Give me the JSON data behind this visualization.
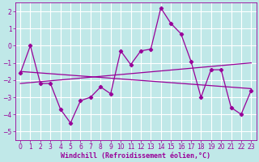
{
  "xlabel": "Windchill (Refroidissement éolien,°C)",
  "bg_color": "#c0e8e8",
  "grid_color": "#ffffff",
  "line_color": "#990099",
  "xlim": [
    -0.5,
    23.5
  ],
  "ylim": [
    -5.5,
    2.5
  ],
  "yticks": [
    -5,
    -4,
    -3,
    -2,
    -1,
    0,
    1,
    2
  ],
  "xticks": [
    0,
    1,
    2,
    3,
    4,
    5,
    6,
    7,
    8,
    9,
    10,
    11,
    12,
    13,
    14,
    15,
    16,
    17,
    18,
    19,
    20,
    21,
    22,
    23
  ],
  "series1_x": [
    0,
    1,
    2,
    3,
    4,
    5,
    6,
    7,
    8,
    9,
    10,
    11,
    12,
    13,
    14,
    15,
    16,
    17,
    18,
    19,
    20,
    21,
    22,
    23
  ],
  "series1_y": [
    -1.6,
    0.0,
    -2.2,
    -2.2,
    -3.7,
    -4.5,
    -3.2,
    -3.0,
    -2.4,
    -2.8,
    -0.3,
    -1.1,
    -0.3,
    -0.2,
    2.2,
    1.3,
    0.7,
    -0.9,
    -3.0,
    -1.4,
    -1.4,
    -3.6,
    -4.0,
    -2.6
  ],
  "series2_x": [
    0,
    23
  ],
  "series2_y": [
    -1.5,
    -2.5
  ],
  "series3_x": [
    0,
    23
  ],
  "series3_y": [
    -2.2,
    -1.0
  ],
  "xlabel_fontsize": 6,
  "tick_fontsize": 5.5
}
